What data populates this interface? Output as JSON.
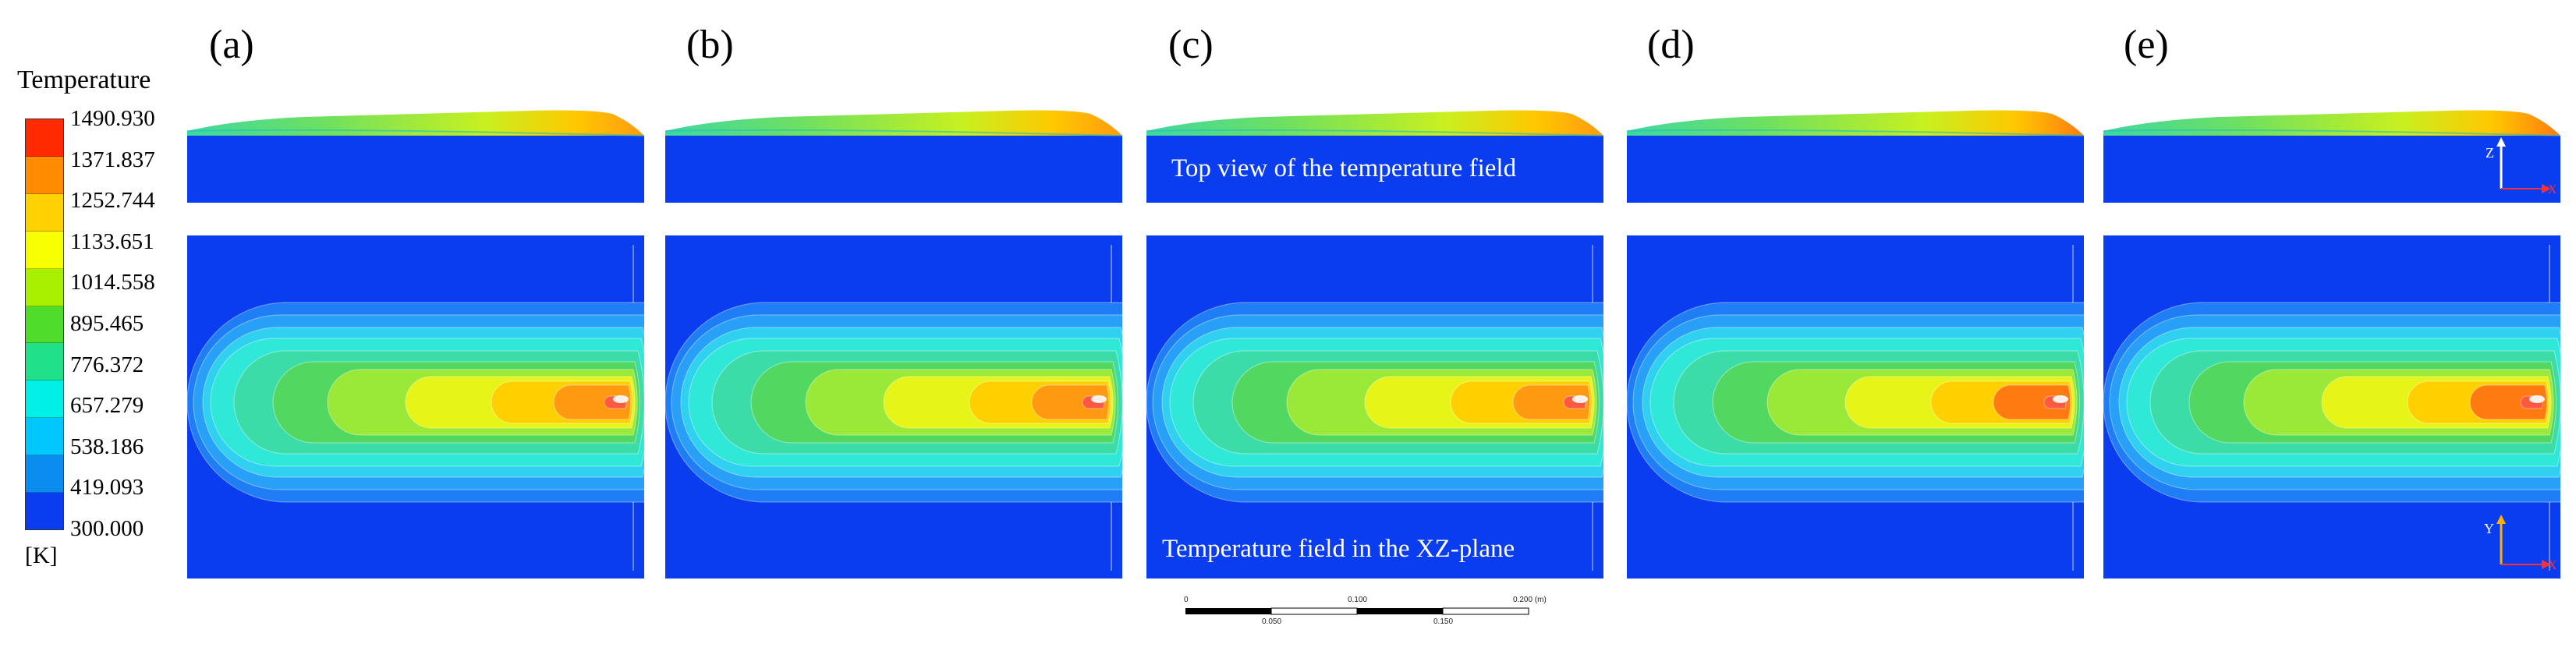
{
  "legend": {
    "title": "Temperature",
    "unit": "[K]",
    "ticks": [
      "1490.930",
      "1371.837",
      "1252.744",
      "1133.651",
      "1014.558",
      "895.465",
      "776.372",
      "657.279",
      "538.186",
      "419.093",
      "300.000"
    ],
    "colors": [
      "#ff2a00",
      "#ff8c00",
      "#ffd200",
      "#f8ff00",
      "#a8f000",
      "#4fdc2a",
      "#20e08a",
      "#00f0e8",
      "#00c8ff",
      "#0a8cf0",
      "#0a3cf0"
    ]
  },
  "panels": [
    {
      "label": "(a)",
      "tip_color": "#ff9a10"
    },
    {
      "label": "(b)",
      "tip_color": "#ff9a10"
    },
    {
      "label": "(c)",
      "tip_color": "#ff9a10"
    },
    {
      "label": "(d)",
      "tip_color": "#ff7a10"
    },
    {
      "label": "(e)",
      "tip_color": "#ff7a10"
    }
  ],
  "annotations": {
    "top_view": "Top view of the temperature field",
    "plane_view": "Temperature field in the XZ-plane"
  },
  "axes": {
    "side": {
      "vertical": "Z",
      "horizontal": "X"
    },
    "plane": {
      "vertical": "Y",
      "horizontal": "X"
    }
  },
  "scale_bar": {
    "top_labels": [
      "0",
      "0.100",
      "0.200 (m)"
    ],
    "bottom_labels": [
      "0.050",
      "0.150"
    ]
  },
  "colors": {
    "background_field": "#0a3cf0",
    "white": "#ffffff"
  }
}
